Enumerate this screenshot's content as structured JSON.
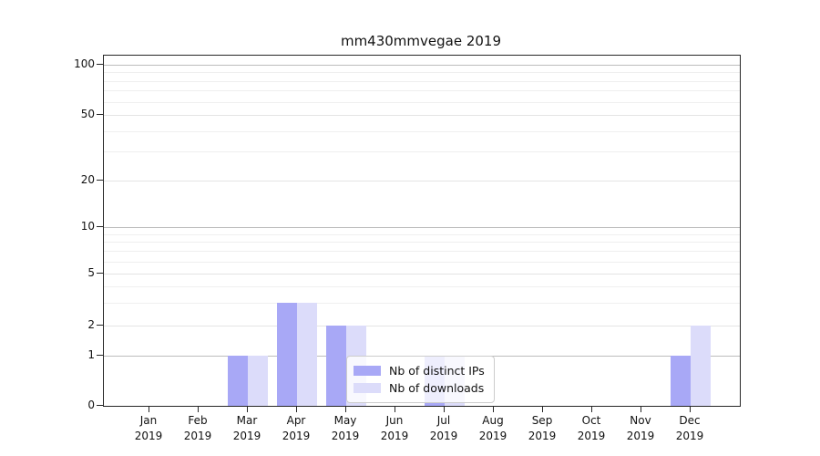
{
  "title": "mm430mmvegae 2019",
  "chart_data": {
    "type": "bar",
    "title": "mm430mmvegae 2019",
    "year_label": "2019",
    "categories": [
      "Jan",
      "Feb",
      "Mar",
      "Apr",
      "May",
      "Jun",
      "Jul",
      "Aug",
      "Sep",
      "Oct",
      "Nov",
      "Dec"
    ],
    "series": [
      {
        "name": "Nb of distinct IPs",
        "color": "#a8a8f6",
        "values": [
          0,
          0,
          1,
          3,
          2,
          0,
          1,
          0,
          0,
          0,
          0,
          1
        ]
      },
      {
        "name": "Nb of downloads",
        "color": "#dcdcfa",
        "values": [
          0,
          0,
          1,
          3,
          2,
          0,
          1,
          0,
          0,
          0,
          0,
          2
        ]
      }
    ],
    "xlabel": "",
    "ylabel": "",
    "y_axis": {
      "scale": "symlog",
      "ticks": [
        0,
        1,
        2,
        5,
        10,
        20,
        50,
        100
      ],
      "decade_gridlines": [
        1,
        10,
        100
      ],
      "minor_gridlines": [
        3,
        4,
        6,
        7,
        8,
        9,
        30,
        40,
        60,
        70,
        80,
        90
      ],
      "ylim": [
        0,
        100
      ]
    },
    "grid": true,
    "legend_position": "lower center-right"
  },
  "legend": {
    "items": [
      "Nb of distinct IPs",
      "Nb of downloads"
    ]
  }
}
